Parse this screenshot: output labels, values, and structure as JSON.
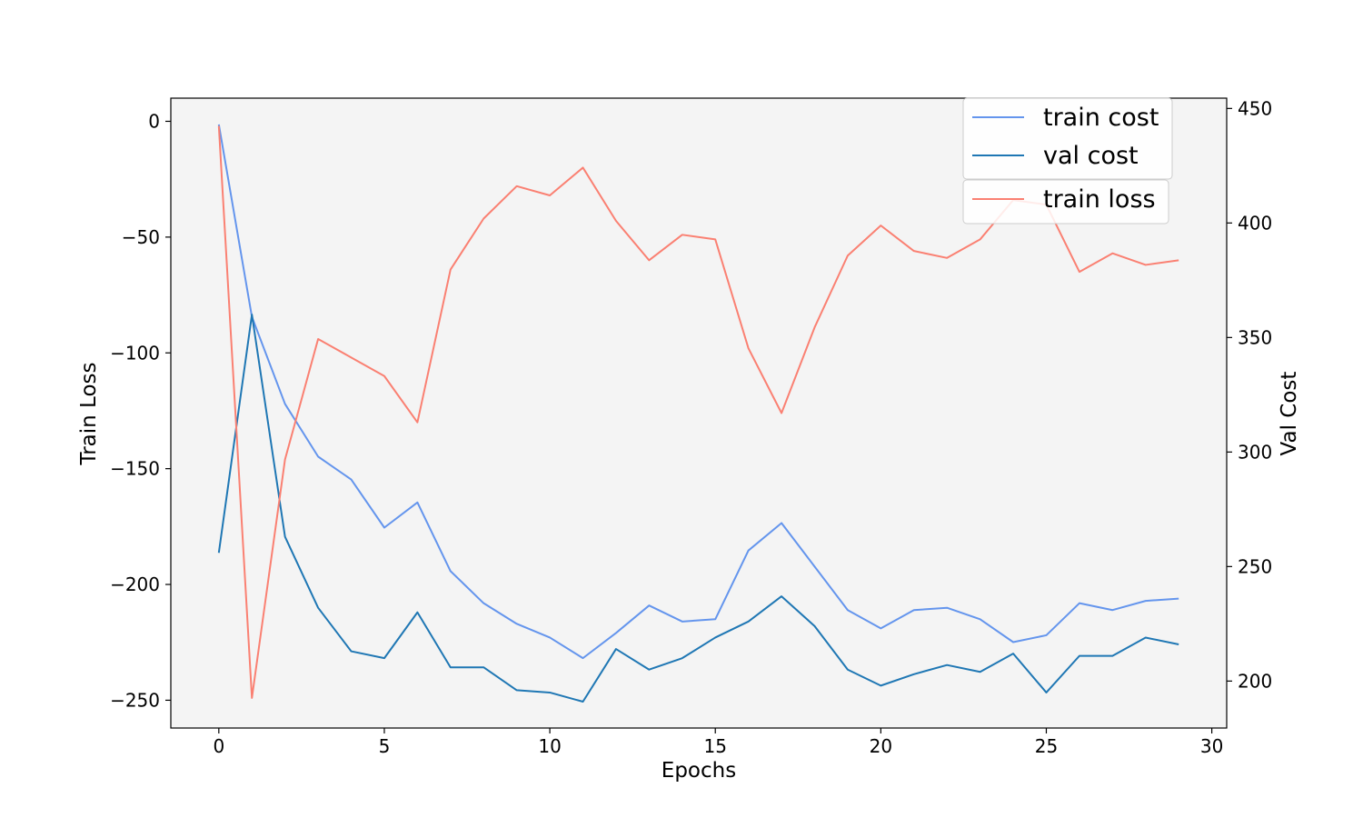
{
  "chart_data": {
    "type": "line",
    "xlabel": "Epochs",
    "ylabel_left": "Train Loss",
    "ylabel_right": "Val Cost",
    "xlim": [
      -1.45,
      30.45
    ],
    "ylim_left": [
      -262,
      10
    ],
    "ylim_right": [
      179.5,
      454.5
    ],
    "x_ticks": [
      0,
      5,
      10,
      15,
      20,
      25,
      30
    ],
    "y_ticks_left": [
      0,
      -50,
      -100,
      -150,
      -200,
      -250
    ],
    "y_ticks_left_labels": [
      "0",
      "−50",
      "−100",
      "−150",
      "−200",
      "−250"
    ],
    "y_ticks_right": [
      200,
      250,
      300,
      350,
      400,
      450
    ],
    "y_ticks_right_labels": [
      "200",
      "250",
      "300",
      "350",
      "400",
      "450"
    ],
    "x": [
      0,
      1,
      2,
      3,
      4,
      5,
      6,
      7,
      8,
      9,
      10,
      11,
      12,
      13,
      14,
      15,
      16,
      17,
      18,
      19,
      20,
      21,
      22,
      23,
      24,
      25,
      26,
      27,
      28,
      29
    ],
    "series": [
      {
        "name": "train cost",
        "axis": "right",
        "color": "#6495ed",
        "values": [
          443,
          359,
          321,
          298,
          288,
          267,
          278,
          248,
          234,
          225,
          219,
          210,
          221,
          233,
          226,
          227,
          257,
          269,
          250,
          231,
          223,
          231,
          232,
          227,
          217,
          220,
          234,
          231,
          235,
          236
        ]
      },
      {
        "name": "val cost",
        "axis": "right",
        "color": "#1f77b4",
        "values": [
          256,
          360,
          263,
          232,
          213,
          210,
          230,
          206,
          206,
          196,
          195,
          191,
          214,
          205,
          210,
          219,
          226,
          237,
          224,
          205,
          198,
          203,
          207,
          204,
          212,
          195,
          211,
          211,
          219,
          216
        ]
      },
      {
        "name": "train loss",
        "axis": "left",
        "color": "#fa8072",
        "values": [
          -2,
          -249,
          -146,
          -94,
          -102,
          -110,
          -130,
          -64,
          -42,
          -28,
          -32,
          -20,
          -43,
          -60,
          -49,
          -51,
          -98,
          -126,
          -89,
          -58,
          -45,
          -56,
          -59,
          -51,
          -34,
          -36,
          -65,
          -57,
          -62,
          -60
        ]
      }
    ],
    "legend": [
      "train cost",
      "val cost",
      "train loss"
    ],
    "legend_position": "top-right",
    "background": "#f4f4f4",
    "grid": false
  }
}
